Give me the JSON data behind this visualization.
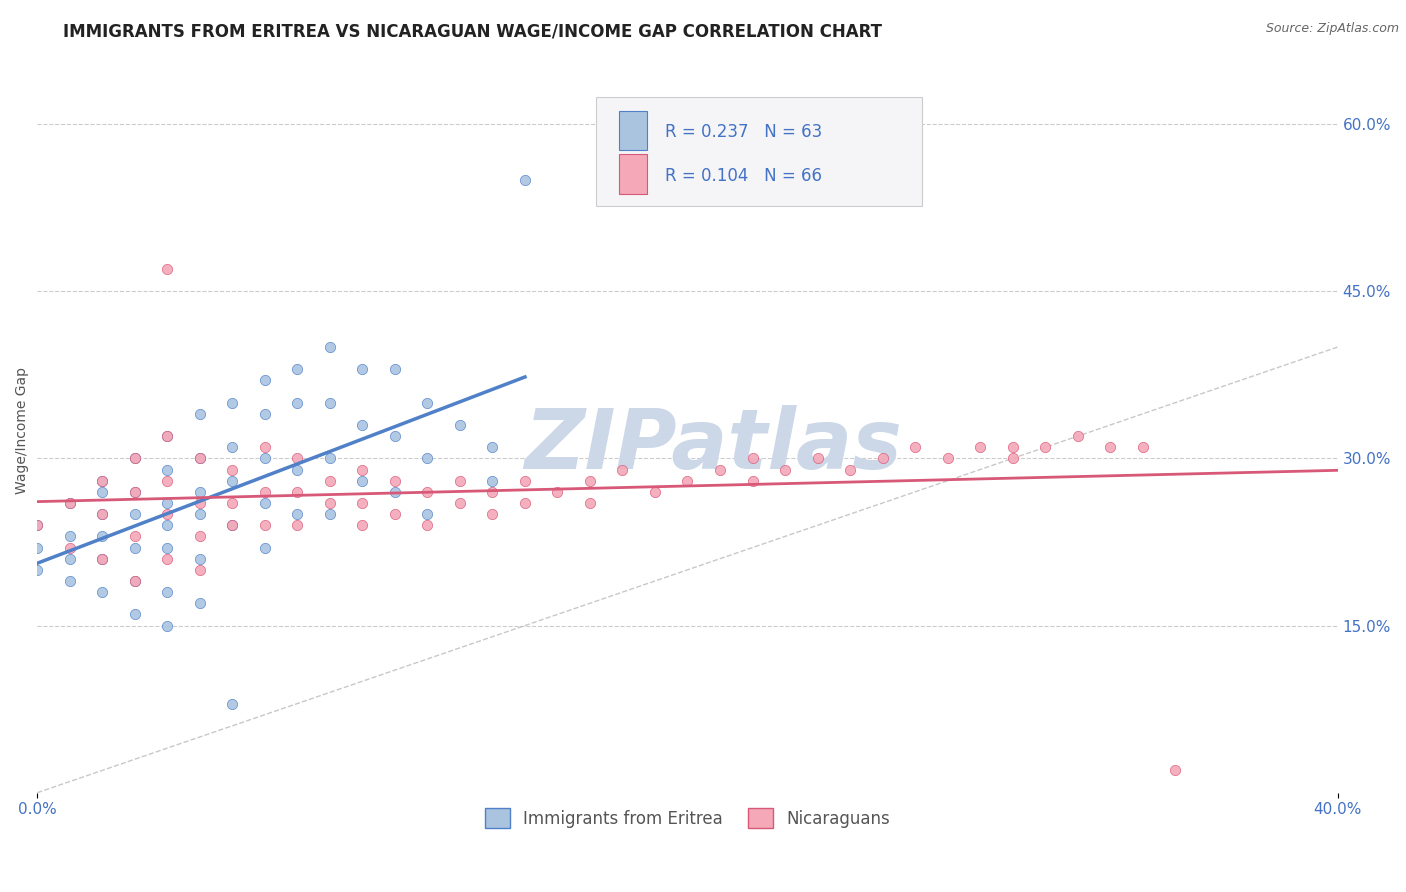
{
  "title": "IMMIGRANTS FROM ERITREA VS NICARAGUAN WAGE/INCOME GAP CORRELATION CHART",
  "source_text": "Source: ZipAtlas.com",
  "ylabel": "Wage/Income Gap",
  "xlim": [
    0.0,
    0.4
  ],
  "ylim": [
    0.0,
    0.65
  ],
  "ytick_positions": [
    0.15,
    0.3,
    0.45,
    0.6
  ],
  "ytick_labels": [
    "15.0%",
    "30.0%",
    "45.0%",
    "60.0%"
  ],
  "background_color": "#ffffff",
  "plot_bg_color": "#ffffff",
  "grid_color": "#cccccc",
  "blue_color": "#aac4e0",
  "blue_line_color": "#5080c8",
  "pink_color": "#f4a8b8",
  "pink_line_color": "#d85878",
  "watermark_color": "#ccd8e8",
  "watermark_text": "ZIPatlas",
  "legend_R1": "R = 0.237",
  "legend_N1": "N = 63",
  "legend_R2": "R = 0.104",
  "legend_N2": "N = 66",
  "legend_label1": "Immigrants from Eritrea",
  "legend_label2": "Nicaraguans",
  "R1": 0.237,
  "N1": 63,
  "R2": 0.104,
  "N2": 66,
  "title_fontsize": 12,
  "axis_label_fontsize": 10,
  "tick_fontsize": 11,
  "legend_fontsize": 12,
  "watermark_fontsize": 60,
  "ref_line_color": "#bbbbbb",
  "right_tick_color": "#4472c4"
}
